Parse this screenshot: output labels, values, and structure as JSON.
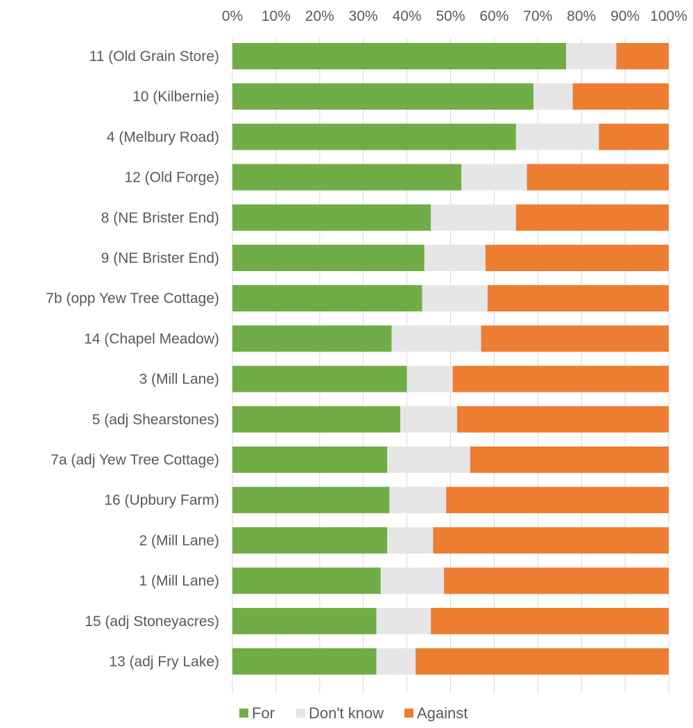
{
  "chart_data": {
    "type": "bar",
    "orientation": "horizontal",
    "stacked": "percent",
    "categories": [
      "11 (Old Grain Store)",
      "10 (Kilbernie)",
      "4 (Melbury Road)",
      "12 (Old Forge)",
      "8 (NE Brister End)",
      "9 (NE Brister End)",
      "7b (opp Yew Tree Cottage)",
      "14 (Chapel Meadow)",
      "3 (Mill Lane)",
      "5 (adj Shearstones)",
      "7a (adj Yew Tree Cottage)",
      "16 (Upbury Farm)",
      "2 (Mill Lane)",
      "1 (Mill Lane)",
      "15 (adj Stoneyacres)",
      "13 (adj Fry Lake)"
    ],
    "series": [
      {
        "name": "For",
        "color": "#70ad47",
        "values": [
          76.5,
          69,
          65,
          52.5,
          45.5,
          44,
          43.5,
          36.5,
          40,
          38.5,
          35.5,
          36,
          35.5,
          34,
          33,
          33
        ]
      },
      {
        "name": "Don't know",
        "color": "#e7e6e6",
        "values": [
          11.5,
          9,
          19,
          15,
          19.5,
          14,
          15,
          20.5,
          10.5,
          13,
          19,
          13,
          10.5,
          14.5,
          12.5,
          9
        ]
      },
      {
        "name": "Against",
        "color": "#ed7d31",
        "values": [
          12,
          22,
          16,
          32.5,
          35,
          42,
          41.5,
          43,
          49.5,
          48.5,
          45.5,
          51,
          54,
          51.5,
          54.5,
          58
        ]
      }
    ],
    "x_ticks": [
      "0%",
      "10%",
      "20%",
      "30%",
      "40%",
      "50%",
      "60%",
      "70%",
      "80%",
      "90%",
      "100%"
    ],
    "xlim": [
      0,
      100
    ],
    "axis_position": "top",
    "grid": true,
    "legend": "bottom"
  }
}
